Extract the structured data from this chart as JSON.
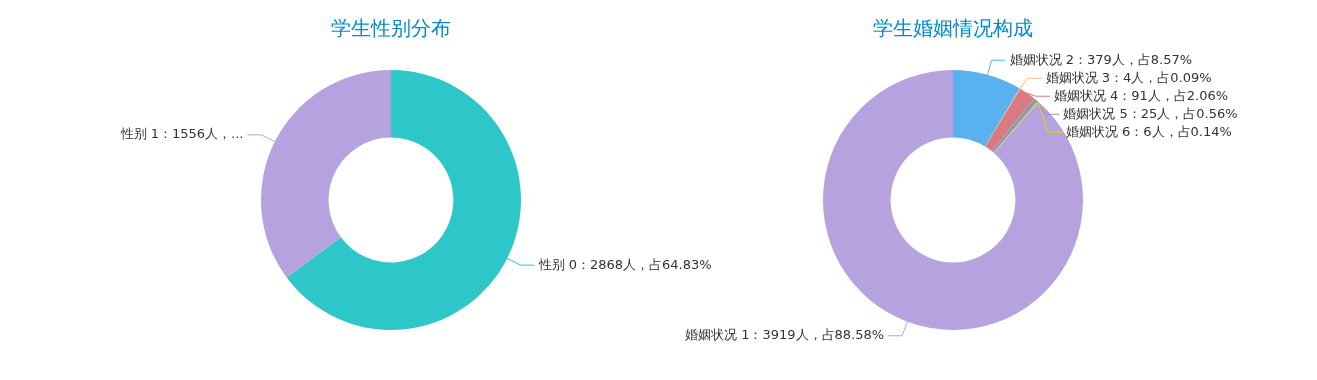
{
  "chart_data": [
    {
      "type": "donut",
      "title": "学生性别分布",
      "categories": [
        "性别 0",
        "性别 1"
      ],
      "values": [
        2868,
        1556
      ],
      "colors": [
        "#2ec7c9",
        "#b6a2de"
      ],
      "value_labels": [
        "：2868人，占64.83%",
        "：1556人，..."
      ]
    },
    {
      "type": "donut",
      "title": "学生婚姻情况构成",
      "categories": [
        "婚姻状况 2",
        "婚姻状况 3",
        "婚姻状况 4",
        "婚姻状况 5",
        "婚姻状况 6",
        "婚姻状况 1"
      ],
      "values": [
        379,
        4,
        91,
        25,
        6,
        3919
      ],
      "colors": [
        "#5ab1ef",
        "#ffb980",
        "#d87a80",
        "#8d98b3",
        "#e5cf0d",
        "#b6a2de"
      ],
      "value_labels": [
        "：379人，占8.57%",
        "：4人，占0.09%",
        "：91人，占2.06%",
        "：25人，占0.56%",
        "：6人，占0.14%",
        "：3919人，占88.58%"
      ]
    }
  ]
}
